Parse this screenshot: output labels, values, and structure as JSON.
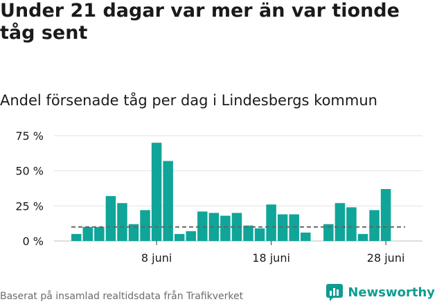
{
  "header": {
    "title": "Under 21 dagar var mer än var tionde tåg sent",
    "subtitle": "Andel försenade tåg per dag i Lindesbergs kommun"
  },
  "footer": {
    "source": "Baserat på insamlad realtidsdata från Trafikverket",
    "brand": "Newsworthy"
  },
  "colors": {
    "bar": "#0fa598",
    "reference_line": "#666666",
    "grid": "#e2e2e2",
    "brand": "#0f9c8f"
  },
  "chart_data": {
    "type": "bar",
    "title": "Andel försenade tåg per dag i Lindesbergs kommun",
    "xlabel": "",
    "ylabel": "",
    "ylim": [
      0,
      75
    ],
    "y_ticks": [
      0,
      25,
      50,
      75
    ],
    "y_tick_labels": [
      "0 %",
      "25 %",
      "50 %",
      "75 %"
    ],
    "x_ticks": [
      {
        "label": "8 juni",
        "day": 8
      },
      {
        "label": "18 juni",
        "day": 18
      },
      {
        "label": "28 juni",
        "day": 28
      }
    ],
    "days": [
      1,
      2,
      3,
      4,
      5,
      6,
      7,
      8,
      9,
      10,
      11,
      12,
      13,
      14,
      15,
      16,
      17,
      18,
      19,
      20,
      21,
      22,
      23,
      24,
      25,
      26,
      27,
      28,
      29,
      30
    ],
    "values": [
      5,
      10,
      10,
      32,
      27,
      12,
      22,
      70,
      57,
      5,
      7,
      21,
      20,
      18,
      20,
      11,
      9,
      26,
      19,
      19,
      6,
      null,
      12,
      27,
      24,
      5,
      22,
      37,
      null,
      null
    ],
    "reference_line": 10,
    "grid": true
  }
}
